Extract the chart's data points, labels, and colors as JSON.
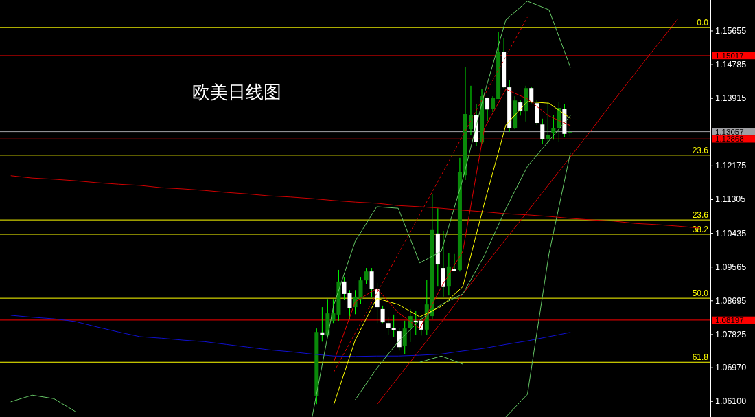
{
  "chart_data": [
    {
      "type": "candlestick",
      "title": "欧美日线图",
      "categories": [
        null,
        null,
        null,
        null,
        null,
        null,
        null,
        null,
        null,
        null,
        null,
        null,
        null,
        null,
        null,
        null,
        null,
        null,
        null,
        null,
        null,
        null,
        null,
        null,
        null,
        null,
        null,
        null,
        null,
        null,
        null,
        null,
        null,
        null,
        null,
        null,
        null,
        null,
        null,
        null,
        null,
        null,
        null,
        null,
        null,
        null,
        null,
        null,
        null,
        null,
        null,
        null,
        null,
        null,
        null,
        null,
        null,
        null,
        null,
        null,
        null,
        null,
        null,
        null,
        null,
        null,
        null,
        null,
        null,
        null,
        null,
        null,
        null,
        null,
        null,
        null,
        null,
        null,
        null,
        null,
        null,
        null,
        null,
        null,
        null,
        null,
        null,
        null,
        null,
        null,
        null,
        null,
        null,
        null,
        null,
        null,
        null,
        null,
        null,
        null,
        null,
        null,
        null,
        null,
        null,
        null,
        null,
        null,
        null,
        null,
        null,
        null,
        null,
        null,
        null,
        null,
        null,
        null,
        null,
        null,
        null,
        null,
        null,
        null,
        null,
        null,
        null,
        null,
        null
      ],
      "ohlc": [
        null,
        null,
        null,
        null,
        null,
        null,
        null,
        null,
        null,
        null,
        null,
        null,
        null,
        null,
        null,
        null,
        null,
        null,
        null,
        null,
        null,
        null,
        null,
        null,
        null,
        null,
        null,
        null,
        null,
        null,
        null,
        null,
        null,
        null,
        null,
        null,
        null,
        null,
        null,
        null,
        null,
        null,
        null,
        null,
        null,
        null,
        null,
        null,
        null,
        null,
        null,
        null,
        null,
        null,
        null,
        null,
        null,
        [
          1.0623,
          1.0798,
          1.0603,
          1.0789
        ],
        [
          1.0788,
          1.0853,
          1.0764,
          1.0782
        ],
        [
          1.078,
          1.0874,
          1.0777,
          1.0837
        ],
        [
          1.0818,
          1.0874,
          1.0812,
          1.0837
        ],
        [
          1.0834,
          1.0949,
          1.0818,
          1.0919
        ],
        [
          1.0919,
          1.0931,
          1.0871,
          1.0887
        ],
        [
          1.0889,
          1.0897,
          1.0821,
          1.0851
        ],
        [
          1.0853,
          1.0897,
          1.0835,
          1.088
        ],
        [
          1.0874,
          1.0931,
          1.0862,
          1.0922
        ],
        [
          1.0922,
          1.0954,
          1.0913,
          1.0945
        ],
        [
          1.0945,
          1.0954,
          1.0878,
          1.0901
        ],
        [
          1.0901,
          1.0915,
          1.0812,
          1.0853
        ],
        [
          1.0848,
          1.0857,
          1.0812,
          1.0814
        ],
        [
          1.0812,
          1.0826,
          1.0782,
          1.08
        ],
        [
          1.08,
          1.0834,
          1.0777,
          1.0793
        ],
        [
          1.0791,
          1.08,
          1.0741,
          1.075
        ],
        [
          1.0754,
          1.0818,
          1.0732,
          1.0798
        ],
        [
          1.08,
          1.0848,
          1.0763,
          1.083
        ],
        [
          1.0818,
          1.0844,
          1.0782,
          1.0814
        ],
        [
          1.0818,
          1.083,
          1.078,
          1.0795
        ],
        [
          1.0795,
          1.0924,
          1.0782,
          1.086
        ],
        [
          1.083,
          1.1145,
          1.0821,
          1.1052
        ],
        [
          1.1043,
          1.1108,
          1.0906,
          1.0963
        ],
        [
          1.0954,
          1.105,
          1.088,
          1.0905
        ],
        [
          1.0906,
          1.0993,
          1.0883,
          1.0958
        ],
        [
          1.0952,
          1.099,
          1.0945,
          1.0947
        ],
        [
          1.0949,
          1.1238,
          1.0945,
          1.1202
        ],
        [
          1.1193,
          1.1473,
          1.1181,
          1.1351
        ],
        [
          1.1312,
          1.1424,
          1.1296,
          1.1349
        ],
        [
          1.1349,
          1.1376,
          1.1268,
          1.128
        ],
        [
          1.1278,
          1.1415,
          1.1273,
          1.1397
        ],
        [
          1.1392,
          1.1394,
          1.1333,
          1.1363
        ],
        [
          1.1365,
          1.1397,
          1.1356,
          1.1392
        ],
        [
          1.139,
          1.1562,
          1.139,
          1.1512
        ],
        [
          1.1511,
          1.1546,
          1.1418,
          1.142
        ],
        [
          1.142,
          1.1438,
          1.1305,
          1.1314
        ],
        [
          1.1314,
          1.1397,
          1.1312,
          1.1386
        ],
        [
          1.1381,
          1.1386,
          1.1347,
          1.136
        ],
        [
          1.1358,
          1.1424,
          1.1332,
          1.1418
        ],
        [
          1.1418,
          1.1422,
          1.1379,
          1.1383
        ],
        [
          1.1379,
          1.1388,
          1.1323,
          1.1328
        ],
        [
          1.1324,
          1.1339,
          1.1273,
          1.1287
        ],
        [
          1.1287,
          1.1381,
          1.1273,
          1.1298
        ],
        [
          1.1303,
          1.1349,
          1.1285,
          1.1314
        ],
        [
          1.1314,
          1.1383,
          1.128,
          1.1367
        ],
        [
          1.1365,
          1.1376,
          1.1291,
          1.13
        ],
        [
          1.1305,
          1.1314,
          1.1294,
          1.1305
        ],
        null,
        null,
        null,
        null,
        null,
        null,
        null,
        null,
        null,
        null,
        null,
        null,
        null,
        null,
        null,
        null,
        null,
        null,
        null,
        null,
        null,
        null,
        null,
        null,
        null
      ],
      "ref_lines": [
        {
          "axis": "y",
          "value": 1.1574,
          "color": "#ffff00"
        },
        {
          "axis": "y",
          "value": 1.15017,
          "label": "1.15017",
          "color": "#ff0000"
        },
        {
          "axis": "y",
          "value": 1.13057,
          "label": "1.13057",
          "color": "#a0a0a4"
        },
        {
          "axis": "y",
          "value": 1.12868,
          "label": "1.12868",
          "color": "#ff0000"
        },
        {
          "axis": "y",
          "value": 1.1245,
          "color": "#ffff00"
        },
        {
          "axis": "y",
          "value": 1.1078,
          "color": "#ffff00"
        },
        {
          "axis": "y",
          "value": 1.1041,
          "color": "#ffff00"
        },
        {
          "axis": "y",
          "value": 1.0876,
          "color": "#ffff00"
        },
        {
          "axis": "y",
          "value": 1.08197,
          "label": "1.08197",
          "color": "#ff0000"
        },
        {
          "axis": "y",
          "value": 1.0711,
          "color": "#ffff00"
        }
      ],
      "annotations": [
        {
          "text": "0.0",
          "y": 1.1574
        },
        {
          "text": "23.6",
          "y": 1.1245
        },
        {
          "text": "23.6",
          "y": 1.1078
        },
        {
          "text": "38.2",
          "y": 1.1041
        },
        {
          "text": "50.0",
          "y": 1.0876
        },
        {
          "text": "61.8",
          "y": 1.0711
        }
      ],
      "ylim": [
        1.05697,
        1.16452
      ],
      "yticks": [
        1.15655,
        1.14785,
        1.13915,
        1.12175,
        1.11305,
        1.10435,
        1.09565,
        1.08695,
        1.07825,
        {
          "value": 1.0697,
          "label": "1.06970"
        },
        {
          "value": 1.061,
          "label": "1.06100"
        }
      ]
    },
    {
      "type": "line",
      "ylim": [
        1.05697,
        1.16452
      ],
      "categories": [
        null,
        null,
        null,
        null,
        null,
        null,
        null,
        null,
        null,
        null,
        null,
        null,
        null,
        null,
        null,
        null,
        null,
        null,
        null,
        null,
        null,
        null,
        null,
        null,
        null,
        null,
        null,
        null,
        null,
        null,
        null,
        null,
        null
      ],
      "series": [
        {
          "color": "#1010d0",
          "values": [
            1.0832,
            1.0827,
            1.0823,
            1.0816,
            1.0802,
            1.0789,
            1.0777,
            1.0773,
            1.0768,
            1.0764,
            1.0757,
            1.075,
            1.0743,
            1.0738,
            1.0732,
            1.0727,
            1.0726,
            1.0727,
            1.0727,
            1.0729,
            1.0732,
            1.074,
            1.0747,
            1.0757,
            1.0766,
            1.0777,
            1.0788,
            null,
            null,
            null,
            null,
            null,
            null
          ]
        },
        {
          "color": "#d00000",
          "values": [
            1.1192,
            1.1186,
            1.1183,
            1.1179,
            1.1174,
            1.117,
            1.1167,
            1.1161,
            1.1158,
            1.1154,
            1.1149,
            1.1145,
            1.114,
            1.1137,
            1.1133,
            1.1128,
            1.1124,
            1.1121,
            1.1115,
            1.1112,
            1.1108,
            1.1103,
            1.1099,
            1.1094,
            1.1091,
            1.1087,
            1.1082,
            1.1078,
            1.1075,
            1.1069,
            1.1066,
            1.1062,
            1.1057
          ]
        },
        {
          "color": "#d00000",
          "values": [
            null,
            null,
            null,
            null,
            null,
            null,
            null,
            null,
            null,
            null,
            null,
            null,
            null,
            null,
            null,
            null,
            null,
            1.0601,
            1.0672,
            1.0743,
            1.0814,
            1.0887,
            1.0958,
            1.1029,
            1.1099,
            1.117,
            1.1241,
            1.1312,
            1.1385,
            1.1456,
            1.1527,
            1.1597,
            null
          ]
        },
        {
          "color": "#d00000",
          "line_style": "dashed",
          "values": [
            null,
            null,
            null,
            null,
            null,
            null,
            null,
            null,
            null,
            null,
            null,
            null,
            null,
            null,
            null,
            1.0685,
            1.0786,
            1.0889,
            1.099,
            1.1092,
            1.1193,
            1.1296,
            1.1399,
            1.15,
            1.1601,
            null,
            null,
            null,
            null,
            null,
            null,
            null,
            null
          ]
        },
        {
          "color": "#66c866",
          "values": [
            1.0609,
            1.0626,
            1.0617,
            1.0584,
            null,
            null,
            null,
            null,
            null,
            null,
            null,
            null,
            null,
            null,
            null,
            null,
            null,
            null,
            null,
            null,
            null,
            null,
            null,
            null,
            null,
            null,
            null,
            null,
            null,
            null,
            null,
            null,
            null
          ]
        },
        {
          "color": "#66c866",
          "values": [
            null,
            null,
            null,
            null,
            null,
            null,
            null,
            null,
            null,
            null,
            null,
            null,
            null,
            null,
            1.057,
            1.0858,
            1.1023,
            1.1112,
            1.1108,
            1.0967,
            1.0997,
            1.1183,
            1.1404,
            1.1594,
            1.1642,
            1.162,
            1.1471,
            null,
            null,
            null,
            null,
            null,
            null
          ]
        },
        {
          "color": "#66c866",
          "values": [
            null,
            null,
            null,
            null,
            null,
            null,
            null,
            null,
            null,
            null,
            null,
            null,
            null,
            null,
            null,
            null,
            1.0614,
            1.0695,
            1.0764,
            1.0819,
            1.086,
            1.0887,
            1.0986,
            1.1107,
            1.1216,
            1.1282,
            1.1347,
            null,
            null,
            null,
            null,
            null,
            null
          ]
        },
        {
          "color": "#66c866",
          "values": [
            null,
            null,
            null,
            null,
            null,
            null,
            null,
            null,
            null,
            null,
            null,
            null,
            null,
            null,
            null,
            null,
            null,
            null,
            null,
            1.0711,
            1.0727,
            1.0706,
            null,
            null,
            null,
            null,
            null,
            null,
            null,
            null,
            null,
            null,
            null
          ]
        },
        {
          "color": "#66c866",
          "values": [
            null,
            null,
            null,
            null,
            null,
            null,
            null,
            null,
            null,
            null,
            null,
            null,
            null,
            null,
            null,
            null,
            null,
            null,
            null,
            null,
            null,
            null,
            null,
            1.057,
            1.0628,
            1.099,
            1.1252,
            null,
            null,
            null,
            null,
            null,
            null
          ]
        },
        {
          "color": "#ffff00",
          "values": [
            null,
            null,
            null,
            null,
            null,
            null,
            null,
            null,
            null,
            null,
            null,
            null,
            null,
            null,
            null,
            1.0601,
            1.0768,
            1.0876,
            1.086,
            1.0828,
            1.0855,
            1.0906,
            1.1121,
            1.1323,
            1.1383,
            1.1379,
            1.134,
            null,
            null,
            null,
            null,
            null,
            null
          ]
        },
        {
          "color": "#e00000",
          "values": [
            null,
            null,
            null,
            null,
            null,
            null,
            null,
            null,
            null,
            null,
            null,
            null,
            null,
            null,
            null,
            1.0711,
            1.0867,
            1.0901,
            1.0839,
            1.0798,
            1.0905,
            1.0997,
            1.1314,
            1.1415,
            1.139,
            1.1346,
            1.1321,
            null,
            null,
            null,
            null,
            null,
            null
          ]
        }
      ]
    }
  ]
}
